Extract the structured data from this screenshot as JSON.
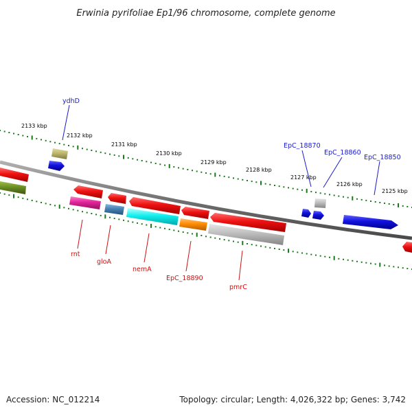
{
  "title": "Erwinia pyrifoliae Ep1/96 chromosome, complete genome",
  "accession": "Accession: NC_012214",
  "summary": "Topology: circular; Length: 4,026,322 bp; Genes: 3,742",
  "ticks": {
    "outer": [
      "2133 kbp",
      "2132 kbp",
      "2131 kbp",
      "2130 kbp",
      "2129 kbp",
      "2128 kbp",
      "2127 kbp",
      "2126 kbp",
      "2125 kbp"
    ]
  },
  "labels": {
    "ydhD": "ydhD",
    "EpC_18870": "EpC_18870",
    "EpC_18860": "EpC_18860",
    "EpC_18850": "EpC_18850",
    "rnt": "rnt",
    "gloA": "gloA",
    "nemA": "nemA",
    "EpC_18890": "EpC_18890",
    "pmrC": "pmrC"
  },
  "colors": {
    "red": "#ee1111",
    "blue": "#1111dd",
    "olive": "#6b8e23",
    "khaki": "#bdb76b",
    "magenta": "#e0249a",
    "steelblue": "#4682b4",
    "cyan": "#11eeee",
    "orange": "#ff8c00",
    "gray": "#b0b0b0",
    "backbone": "#7a7a7a",
    "tick": "#1a7a1a"
  }
}
